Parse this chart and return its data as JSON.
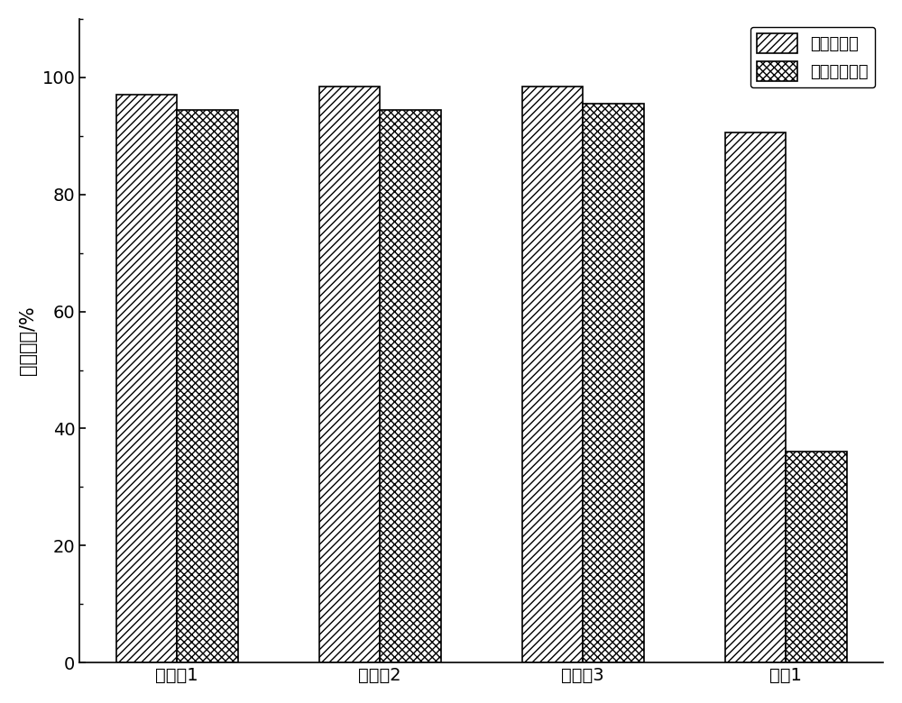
{
  "categories": [
    "实施奥1",
    "实施奥2",
    "实施奥3",
    "对比1"
  ],
  "fresh_catalyst": [
    97,
    98.5,
    98.5,
    90.5
  ],
  "poisoned_catalyst": [
    94.5,
    94.5,
    95.5,
    36
  ],
  "ylabel": "脱硝效率/%",
  "ylim": [
    0,
    110
  ],
  "yticks": [
    0,
    20,
    40,
    60,
    80,
    100
  ],
  "legend_labels": [
    "新鲜催化剂",
    "硃中毒催化剂"
  ],
  "bar_width": 0.3,
  "background_color": "#ffffff",
  "bar_edge_color": "#000000",
  "hatch_fresh": "////",
  "hatch_poisoned": "xxxx",
  "bar_facecolor": "#ffffff",
  "fontsize_tick": 14,
  "fontsize_ylabel": 15,
  "fontsize_legend": 13
}
